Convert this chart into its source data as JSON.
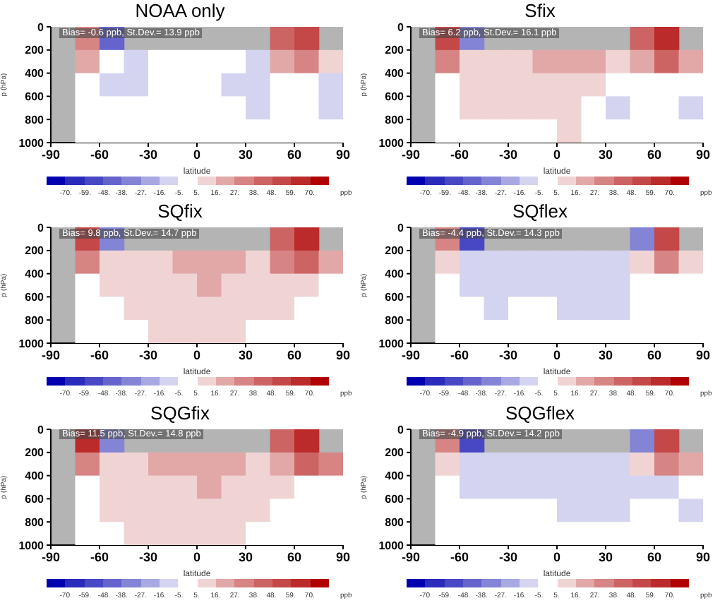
{
  "chart_data": [
    {
      "type": "heatmap",
      "title": "NOAA only",
      "xlabel": "latitude",
      "ylabel": "p (hPa)",
      "clabel": "ppb",
      "annotations": [
        "Bias= -0.6 ppb,  St.Dev.= 13.9 ppb"
      ],
      "xlim": [
        -90,
        90
      ],
      "xticks": [
        -90,
        -60,
        -30,
        0,
        30,
        60,
        90
      ],
      "ylim": [
        1000,
        0
      ],
      "yticks": [
        0,
        200,
        400,
        600,
        800,
        1000
      ],
      "clim": [
        -81,
        81
      ],
      "cticks": [
        {
          "value": -70,
          "label": "-70."
        },
        {
          "value": -59,
          "label": "-59."
        },
        {
          "value": -48,
          "label": "-48."
        },
        {
          "value": -38,
          "label": "-38."
        },
        {
          "value": -27,
          "label": "-27."
        },
        {
          "value": -16,
          "label": "-16."
        },
        {
          "value": -5,
          "label": "-5."
        },
        {
          "value": 5,
          "label": "5."
        },
        {
          "value": 16,
          "label": "16."
        },
        {
          "value": 27,
          "label": "27."
        },
        {
          "value": 38,
          "label": "38."
        },
        {
          "value": 48,
          "label": "48."
        },
        {
          "value": 59,
          "label": "59."
        },
        {
          "value": 70,
          "label": "70."
        }
      ],
      "colors": [
        "#0000b0",
        "#2b2bbb",
        "#4848c4",
        "#6464cc",
        "#8484d6",
        "#a8a8e2",
        "#d4d4f0",
        "#ffffff",
        "#f0d4d4",
        "#e2a8a8",
        "#d68484",
        "#cc6464",
        "#c44848",
        "#bb2b2b",
        "#b00000"
      ],
      "cells": [
        [
          null,
          30,
          -40,
          null,
          null,
          null,
          null,
          null,
          null,
          40,
          50,
          null
        ],
        [
          null,
          20,
          -5,
          -8,
          -5,
          -3,
          -5,
          -5,
          -8,
          20,
          30,
          10
        ],
        [
          null,
          -3,
          -8,
          -8,
          -3,
          -3,
          -5,
          -8,
          -10,
          -5,
          -5,
          -8
        ],
        [
          null,
          -2,
          -5,
          -5,
          -2,
          -3,
          -5,
          -5,
          -8,
          -5,
          -3,
          -8
        ],
        [
          null,
          -2,
          -3,
          -2,
          -2,
          -2,
          0,
          -3,
          -3,
          -2,
          -2,
          -3
        ]
      ]
    },
    {
      "type": "heatmap",
      "title": "Sfix",
      "xlabel": "latitude",
      "ylabel": "p (hPa)",
      "clabel": "ppb",
      "annotations": [
        "Bias= 6.2 ppb,  St.Dev.= 16.1 ppb"
      ],
      "xlim": [
        -90,
        90
      ],
      "xticks": [
        -90,
        -60,
        -30,
        0,
        30,
        60,
        90
      ],
      "ylim": [
        1000,
        0
      ],
      "yticks": [
        0,
        200,
        400,
        600,
        800,
        1000
      ],
      "clim": [
        -81,
        81
      ],
      "cticks": [
        {
          "value": -70,
          "label": "-70."
        },
        {
          "value": -59,
          "label": "-59."
        },
        {
          "value": -48,
          "label": "-48."
        },
        {
          "value": -38,
          "label": "-38."
        },
        {
          "value": -27,
          "label": "-27."
        },
        {
          "value": -16,
          "label": "-16."
        },
        {
          "value": -5,
          "label": "-5."
        },
        {
          "value": 5,
          "label": "5."
        },
        {
          "value": 16,
          "label": "16."
        },
        {
          "value": 27,
          "label": "27."
        },
        {
          "value": 38,
          "label": "38."
        },
        {
          "value": 48,
          "label": "48."
        },
        {
          "value": 59,
          "label": "59."
        },
        {
          "value": 70,
          "label": "70."
        }
      ],
      "colors": [
        "#0000b0",
        "#2b2bbb",
        "#4848c4",
        "#6464cc",
        "#8484d6",
        "#a8a8e2",
        "#d4d4f0",
        "#ffffff",
        "#f0d4d4",
        "#e2a8a8",
        "#d68484",
        "#cc6464",
        "#c44848",
        "#bb2b2b",
        "#b00000"
      ],
      "cells": [
        [
          null,
          50,
          -30,
          null,
          null,
          null,
          null,
          null,
          null,
          40,
          60,
          null
        ],
        [
          null,
          30,
          10,
          15,
          15,
          20,
          20,
          20,
          15,
          25,
          40,
          20
        ],
        [
          null,
          5,
          10,
          15,
          12,
          15,
          15,
          10,
          -5,
          -5,
          -3,
          -5
        ],
        [
          null,
          3,
          8,
          10,
          8,
          10,
          10,
          5,
          -8,
          -5,
          -5,
          -8
        ],
        [
          null,
          2,
          5,
          5,
          5,
          5,
          8,
          3,
          -5,
          -3,
          -3,
          -5
        ]
      ]
    },
    {
      "type": "heatmap",
      "title": "SQfix",
      "xlabel": "latitude",
      "ylabel": "p (hPa)",
      "clabel": "ppb",
      "annotations": [
        "Bias= 9.8 ppb,  St.Dev.= 14.7 ppb"
      ],
      "xlim": [
        -90,
        90
      ],
      "xticks": [
        -90,
        -60,
        -30,
        0,
        30,
        60,
        90
      ],
      "ylim": [
        1000,
        0
      ],
      "yticks": [
        0,
        200,
        400,
        600,
        800,
        1000
      ],
      "clim": [
        -81,
        81
      ],
      "cticks": [
        {
          "value": -70,
          "label": "-70."
        },
        {
          "value": -59,
          "label": "-59."
        },
        {
          "value": -48,
          "label": "-48."
        },
        {
          "value": -38,
          "label": "-38."
        },
        {
          "value": -27,
          "label": "-27."
        },
        {
          "value": -16,
          "label": "-16."
        },
        {
          "value": -5,
          "label": "-5."
        },
        {
          "value": 5,
          "label": "5."
        },
        {
          "value": 16,
          "label": "16."
        },
        {
          "value": 27,
          "label": "27."
        },
        {
          "value": 38,
          "label": "38."
        },
        {
          "value": 48,
          "label": "48."
        },
        {
          "value": 59,
          "label": "59."
        },
        {
          "value": 70,
          "label": "70."
        }
      ],
      "colors": [
        "#0000b0",
        "#2b2bbb",
        "#4848c4",
        "#6464cc",
        "#8484d6",
        "#a8a8e2",
        "#d4d4f0",
        "#ffffff",
        "#f0d4d4",
        "#e2a8a8",
        "#d68484",
        "#cc6464",
        "#c44848",
        "#bb2b2b",
        "#b00000"
      ],
      "cells": [
        [
          null,
          50,
          -30,
          null,
          null,
          null,
          null,
          null,
          null,
          40,
          60,
          null
        ],
        [
          null,
          30,
          10,
          12,
          15,
          20,
          20,
          20,
          15,
          30,
          40,
          25
        ],
        [
          null,
          5,
          8,
          10,
          12,
          15,
          18,
          15,
          8,
          10,
          8,
          5
        ],
        [
          null,
          3,
          5,
          8,
          10,
          12,
          15,
          12,
          8,
          8,
          5,
          -3
        ],
        [
          null,
          2,
          3,
          5,
          8,
          10,
          10,
          10,
          5,
          5,
          5,
          3
        ]
      ]
    },
    {
      "type": "heatmap",
      "title": "SQflex",
      "xlabel": "latitude",
      "ylabel": "p (hPa)",
      "clabel": "ppb",
      "annotations": [
        "Bias= -4.4 ppb,  St.Dev.= 14.3 ppb"
      ],
      "xlim": [
        -90,
        90
      ],
      "xticks": [
        -90,
        -60,
        -30,
        0,
        30,
        60,
        90
      ],
      "ylim": [
        1000,
        0
      ],
      "yticks": [
        0,
        200,
        400,
        600,
        800,
        1000
      ],
      "clim": [
        -81,
        81
      ],
      "cticks": [
        {
          "value": -70,
          "label": "-70."
        },
        {
          "value": -59,
          "label": "-59."
        },
        {
          "value": -48,
          "label": "-48."
        },
        {
          "value": -38,
          "label": "-38."
        },
        {
          "value": -27,
          "label": "-27."
        },
        {
          "value": -16,
          "label": "-16."
        },
        {
          "value": -5,
          "label": "-5."
        },
        {
          "value": 5,
          "label": "5."
        },
        {
          "value": 16,
          "label": "16."
        },
        {
          "value": 27,
          "label": "27."
        },
        {
          "value": 38,
          "label": "38."
        },
        {
          "value": 48,
          "label": "48."
        },
        {
          "value": 59,
          "label": "59."
        },
        {
          "value": 70,
          "label": "70."
        }
      ],
      "colors": [
        "#0000b0",
        "#2b2bbb",
        "#4848c4",
        "#6464cc",
        "#8484d6",
        "#a8a8e2",
        "#d4d4f0",
        "#ffffff",
        "#f0d4d4",
        "#e2a8a8",
        "#d68484",
        "#cc6464",
        "#c44848",
        "#bb2b2b",
        "#b00000"
      ],
      "cells": [
        [
          null,
          30,
          -50,
          null,
          null,
          null,
          null,
          null,
          null,
          -30,
          50,
          null
        ],
        [
          null,
          15,
          -8,
          -10,
          -8,
          -8,
          -10,
          -10,
          -10,
          15,
          30,
          15
        ],
        [
          null,
          -5,
          -8,
          -10,
          -8,
          -8,
          -8,
          -10,
          -12,
          -5,
          -5,
          -3
        ],
        [
          null,
          -3,
          -5,
          -8,
          -5,
          -5,
          -8,
          -8,
          -8,
          -3,
          -3,
          3
        ],
        [
          null,
          -2,
          -3,
          -3,
          -3,
          -3,
          -5,
          -3,
          -3,
          5,
          3,
          3
        ]
      ]
    },
    {
      "type": "heatmap",
      "title": "SQGfix",
      "xlabel": "latitude",
      "ylabel": "p (hPa)",
      "clabel": "ppb",
      "annotations": [
        "Bias= 11.5 ppb, St.Dev.= 14.8 ppb"
      ],
      "xlim": [
        -90,
        90
      ],
      "xticks": [
        -90,
        -60,
        -30,
        0,
        30,
        60,
        90
      ],
      "ylim": [
        1000,
        0
      ],
      "yticks": [
        0,
        200,
        400,
        600,
        800,
        1000
      ],
      "clim": [
        -81,
        81
      ],
      "cticks": [
        {
          "value": -70,
          "label": "-70."
        },
        {
          "value": -59,
          "label": "-59."
        },
        {
          "value": -48,
          "label": "-48."
        },
        {
          "value": -38,
          "label": "-38."
        },
        {
          "value": -27,
          "label": "-27."
        },
        {
          "value": -16,
          "label": "-16."
        },
        {
          "value": -5,
          "label": "-5."
        },
        {
          "value": 5,
          "label": "5."
        },
        {
          "value": 16,
          "label": "16."
        },
        {
          "value": 27,
          "label": "27."
        },
        {
          "value": 38,
          "label": "38."
        },
        {
          "value": 48,
          "label": "48."
        },
        {
          "value": 59,
          "label": "59."
        },
        {
          "value": 70,
          "label": "70."
        }
      ],
      "colors": [
        "#0000b0",
        "#2b2bbb",
        "#4848c4",
        "#6464cc",
        "#8484d6",
        "#a8a8e2",
        "#d4d4f0",
        "#ffffff",
        "#f0d4d4",
        "#e2a8a8",
        "#d68484",
        "#cc6464",
        "#c44848",
        "#bb2b2b",
        "#b00000"
      ],
      "cells": [
        [
          null,
          60,
          -30,
          null,
          null,
          null,
          null,
          null,
          null,
          40,
          60,
          null
        ],
        [
          null,
          35,
          15,
          15,
          18,
          20,
          25,
          20,
          15,
          25,
          40,
          30
        ],
        [
          null,
          5,
          10,
          12,
          12,
          15,
          18,
          12,
          10,
          8,
          5,
          3
        ],
        [
          null,
          3,
          8,
          10,
          10,
          12,
          15,
          12,
          8,
          5,
          3,
          -5
        ],
        [
          null,
          2,
          5,
          8,
          8,
          10,
          10,
          8,
          5,
          5,
          3,
          3
        ]
      ]
    },
    {
      "type": "heatmap",
      "title": "SQGflex",
      "xlabel": "latitude",
      "ylabel": "p (hPa)",
      "clabel": "ppb",
      "annotations": [
        "Bias= -4.9 ppb,  St.Dev.= 14.2 ppb"
      ],
      "xlim": [
        -90,
        90
      ],
      "xticks": [
        -90,
        -60,
        -30,
        0,
        30,
        60,
        90
      ],
      "ylim": [
        1000,
        0
      ],
      "yticks": [
        0,
        200,
        400,
        600,
        800,
        1000
      ],
      "clim": [
        -81,
        81
      ],
      "cticks": [
        {
          "value": -70,
          "label": "-70."
        },
        {
          "value": -59,
          "label": "-59."
        },
        {
          "value": -48,
          "label": "-48."
        },
        {
          "value": -38,
          "label": "-38."
        },
        {
          "value": -27,
          "label": "-27."
        },
        {
          "value": -16,
          "label": "-16."
        },
        {
          "value": -5,
          "label": "-5."
        },
        {
          "value": 5,
          "label": "5."
        },
        {
          "value": 16,
          "label": "16."
        },
        {
          "value": 27,
          "label": "27."
        },
        {
          "value": 38,
          "label": "38."
        },
        {
          "value": 48,
          "label": "48."
        },
        {
          "value": 59,
          "label": "59."
        },
        {
          "value": 70,
          "label": "70."
        }
      ],
      "colors": [
        "#0000b0",
        "#2b2bbb",
        "#4848c4",
        "#6464cc",
        "#8484d6",
        "#a8a8e2",
        "#d4d4f0",
        "#ffffff",
        "#f0d4d4",
        "#e2a8a8",
        "#d68484",
        "#cc6464",
        "#c44848",
        "#bb2b2b",
        "#b00000"
      ],
      "cells": [
        [
          null,
          30,
          -50,
          null,
          null,
          null,
          null,
          null,
          null,
          -30,
          50,
          null
        ],
        [
          null,
          15,
          -8,
          -8,
          -8,
          -10,
          -10,
          -12,
          -12,
          10,
          30,
          20
        ],
        [
          null,
          -5,
          -8,
          -8,
          -8,
          -8,
          -10,
          -12,
          -15,
          -8,
          -8,
          -5
        ],
        [
          null,
          -3,
          -5,
          -5,
          -5,
          -5,
          -8,
          -10,
          -10,
          -5,
          -3,
          -8
        ],
        [
          null,
          -2,
          -3,
          -3,
          -3,
          -3,
          -5,
          -5,
          -3,
          5,
          3,
          -3
        ]
      ]
    }
  ]
}
